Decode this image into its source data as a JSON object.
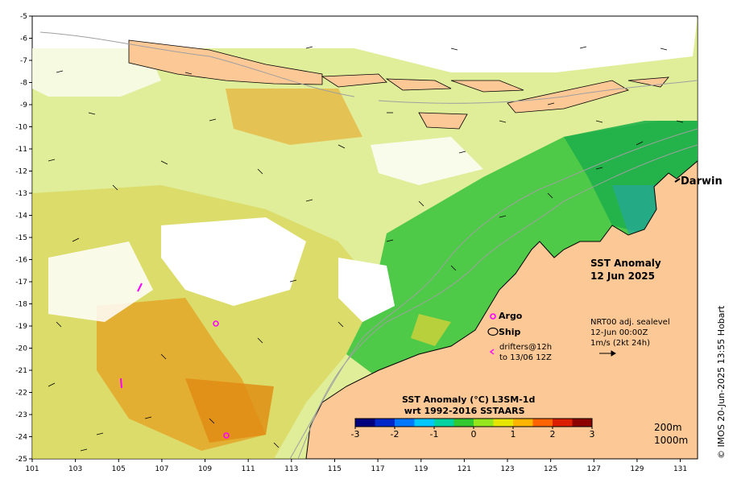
{
  "map": {
    "city": "Darwin",
    "title_line1": "SST Anomaly",
    "title_line2": "12 Jun 2025",
    "legend": {
      "argo": "Argo",
      "ship": "Ship",
      "drifters_line1": "drifters@12h",
      "drifters_line2": "to 13/06 12Z"
    },
    "vector_info": {
      "line1": "NRT00 adj. sealevel",
      "line2": "12-Jun 00:00Z",
      "line3": "1m/s (2kt 24h)"
    },
    "colorbar": {
      "title_line1": "SST Anomaly (°C) L3SM-1d",
      "title_line2": "wrt 1992-2016 SSTAARS",
      "ticks": [
        "-3",
        "-2",
        "-1",
        "0",
        "1",
        "2",
        "3"
      ],
      "range": [
        -3,
        3
      ],
      "colors": [
        "#00007f",
        "#0028c8",
        "#0078ff",
        "#00c8ff",
        "#00d2a0",
        "#32c832",
        "#96e61e",
        "#e6e600",
        "#ffb400",
        "#ff6400",
        "#dc1e00",
        "#8c0000"
      ]
    },
    "contour_labels": [
      "200m",
      "1000m"
    ],
    "stamp": "© IMOS 20-Jun-2025 13:55 Hobart",
    "axes": {
      "lon_ticks": [
        "101",
        "103",
        "105",
        "107",
        "109",
        "111",
        "113",
        "115",
        "117",
        "119",
        "121",
        "123",
        "125",
        "127",
        "129",
        "131"
      ],
      "lat_ticks": [
        "-5",
        "-6",
        "-7",
        "-8",
        "-9",
        "-10",
        "-11",
        "-12",
        "-13",
        "-14",
        "-15",
        "-16",
        "-17",
        "-18",
        "-19",
        "-20",
        "-21",
        "-22",
        "-23",
        "-24",
        "-25"
      ]
    },
    "colors": {
      "land": "#fcc896",
      "coast": "#000000",
      "contour": "#a0a0a0",
      "argo": "#ff00ff",
      "drifter": "#ff00ff"
    }
  }
}
